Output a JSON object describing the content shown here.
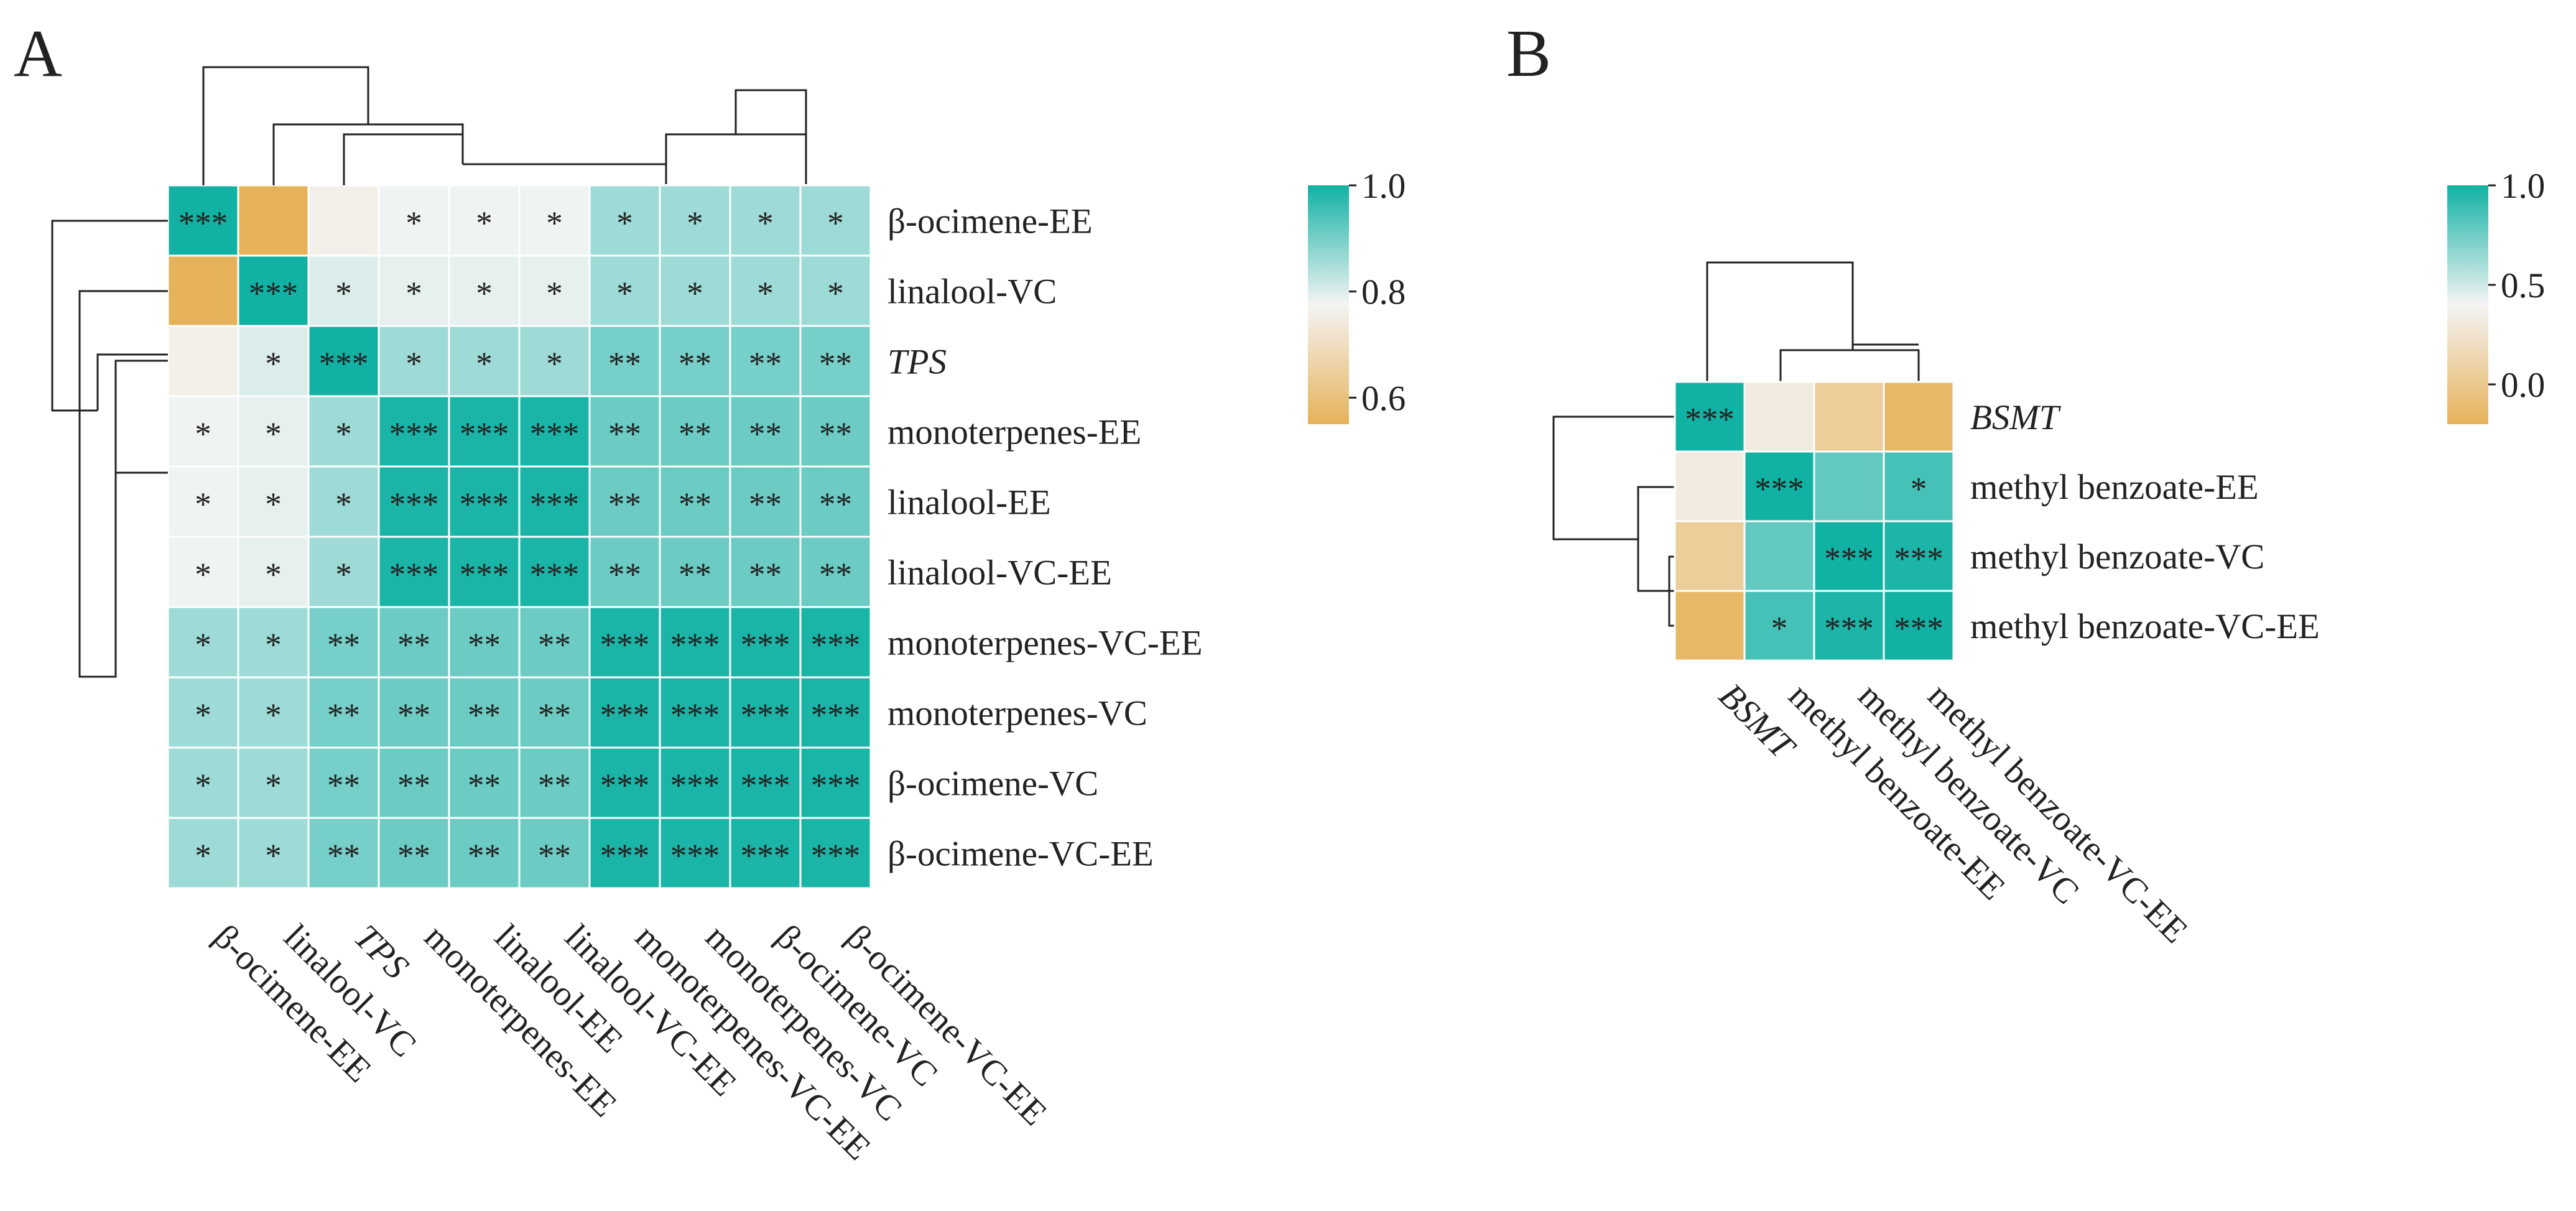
{
  "chart_data": [
    {
      "panel": "A",
      "type": "heatmap",
      "title": "",
      "colorbar": {
        "min": 0.55,
        "max": 1.0,
        "ticks": [
          "1.0",
          "0.8",
          "0.6"
        ],
        "tick_values": [
          1.0,
          0.8,
          0.6
        ],
        "low_color": "#E5B25A",
        "mid_color": "#F4F4F4",
        "high_color": "#11B2A4"
      },
      "rows": [
        "β-ocimene-EE",
        "linalool-VC",
        "TPS",
        "monoterpenes-EE",
        "linalool-EE",
        "linalool-VC-EE",
        "monoterpenes-VC-EE",
        "monoterpenes-VC",
        "β-ocimene-VC",
        "β-ocimene-VC-EE"
      ],
      "cols": [
        "β-ocimene-EE",
        "linalool-VC",
        "TPS",
        "monoterpenes-EE",
        "linalool-EE",
        "linalool-VC-EE",
        "monoterpenes-VC-EE",
        "monoterpenes-VC",
        "β-ocimene-VC",
        "β-ocimene-VC-EE"
      ],
      "italic_labels": [
        "TPS"
      ],
      "values": [
        [
          1.0,
          0.55,
          0.76,
          0.78,
          0.78,
          0.78,
          0.86,
          0.86,
          0.86,
          0.86
        ],
        [
          0.55,
          1.0,
          0.8,
          0.79,
          0.79,
          0.79,
          0.86,
          0.86,
          0.86,
          0.86
        ],
        [
          0.76,
          0.8,
          1.0,
          0.86,
          0.86,
          0.86,
          0.9,
          0.9,
          0.9,
          0.9
        ],
        [
          0.78,
          0.79,
          0.86,
          0.99,
          0.99,
          0.99,
          0.91,
          0.91,
          0.91,
          0.91
        ],
        [
          0.78,
          0.79,
          0.86,
          0.99,
          0.99,
          0.99,
          0.91,
          0.91,
          0.91,
          0.91
        ],
        [
          0.78,
          0.79,
          0.86,
          0.99,
          0.99,
          0.99,
          0.91,
          0.91,
          0.91,
          0.91
        ],
        [
          0.86,
          0.86,
          0.9,
          0.91,
          0.91,
          0.91,
          0.99,
          0.99,
          0.99,
          0.99
        ],
        [
          0.86,
          0.86,
          0.9,
          0.91,
          0.91,
          0.91,
          0.99,
          0.99,
          0.99,
          0.99
        ],
        [
          0.86,
          0.86,
          0.9,
          0.91,
          0.91,
          0.91,
          0.99,
          0.99,
          0.99,
          0.99
        ],
        [
          0.86,
          0.86,
          0.9,
          0.91,
          0.91,
          0.91,
          0.99,
          0.99,
          0.99,
          0.99
        ]
      ],
      "significance": [
        [
          "***",
          "",
          "",
          "*",
          "*",
          "*",
          "*",
          "*",
          "*",
          "*"
        ],
        [
          "",
          "***",
          "*",
          "*",
          "*",
          "*",
          "*",
          "*",
          "*",
          "*"
        ],
        [
          "",
          "*",
          "***",
          "*",
          "*",
          "*",
          "**",
          "**",
          "**",
          "**"
        ],
        [
          "*",
          "*",
          "*",
          "***",
          "***",
          "***",
          "**",
          "**",
          "**",
          "**"
        ],
        [
          "*",
          "*",
          "*",
          "***",
          "***",
          "***",
          "**",
          "**",
          "**",
          "**"
        ],
        [
          "*",
          "*",
          "*",
          "***",
          "***",
          "***",
          "**",
          "**",
          "**",
          "**"
        ],
        [
          "*",
          "*",
          "**",
          "**",
          "**",
          "**",
          "***",
          "***",
          "***",
          "***"
        ],
        [
          "*",
          "*",
          "**",
          "**",
          "**",
          "**",
          "***",
          "***",
          "***",
          "***"
        ],
        [
          "*",
          "*",
          "**",
          "**",
          "**",
          "**",
          "***",
          "***",
          "***",
          "***"
        ],
        [
          "*",
          "*",
          "**",
          "**",
          "**",
          "**",
          "***",
          "***",
          "***",
          "***"
        ]
      ]
    },
    {
      "panel": "B",
      "type": "heatmap",
      "title": "",
      "colorbar": {
        "min": -0.2,
        "max": 1.0,
        "ticks": [
          "1.0",
          "0.5",
          "0.0"
        ],
        "tick_values": [
          1.0,
          0.5,
          0.0
        ],
        "low_color": "#E5B25A",
        "mid_color": "#F4F4F4",
        "high_color": "#11B2A4"
      },
      "rows": [
        "BSMT",
        "methyl benzoate-EE",
        "methyl benzoate-VC",
        "methyl benzoate-VC-EE"
      ],
      "cols": [
        "BSMT",
        "methyl benzoate-EE",
        "methyl benzoate-VC",
        "methyl benzoate-VC-EE"
      ],
      "italic_labels": [
        "BSMT"
      ],
      "values": [
        [
          1.0,
          0.32,
          0.05,
          -0.15
        ],
        [
          0.32,
          1.0,
          0.78,
          0.86
        ],
        [
          0.05,
          0.78,
          1.0,
          0.97
        ],
        [
          -0.15,
          0.86,
          0.97,
          1.0
        ]
      ],
      "significance": [
        [
          "***",
          "",
          "",
          ""
        ],
        [
          "",
          "***",
          "",
          "*"
        ],
        [
          "",
          "",
          "***",
          "***"
        ],
        [
          "",
          "*",
          "***",
          "***"
        ]
      ]
    }
  ]
}
